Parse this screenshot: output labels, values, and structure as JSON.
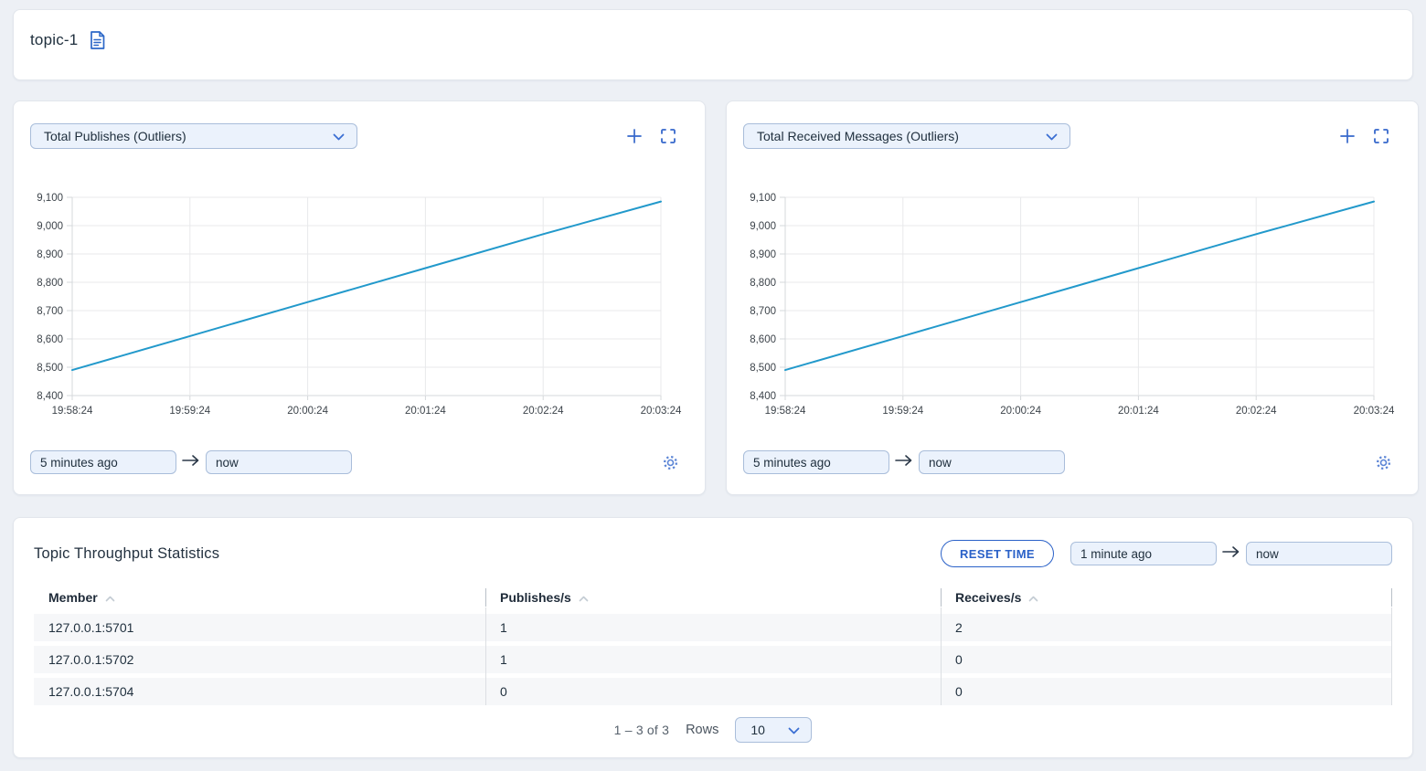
{
  "header": {
    "title": "topic-1"
  },
  "charts": [
    {
      "selector_label": "Total Publishes (Outliers)",
      "from_value": "5 minutes ago",
      "to_value": "now"
    },
    {
      "selector_label": "Total Received Messages (Outliers)",
      "from_value": "5 minutes ago",
      "to_value": "now"
    }
  ],
  "chart_data": [
    {
      "type": "line",
      "title": "Total Publishes (Outliers)",
      "x": [
        "19:58:24",
        "19:59:24",
        "20:00:24",
        "20:01:24",
        "20:02:24",
        "20:03:24"
      ],
      "series": [
        {
          "name": "Total Publishes",
          "values": [
            8490,
            8610,
            8730,
            8850,
            8970,
            9085
          ]
        }
      ],
      "ylim": [
        8400,
        9100
      ],
      "yticks": [
        8400,
        8500,
        8600,
        8700,
        8800,
        8900,
        9000,
        9100
      ],
      "ytick_labels": [
        "8,400",
        "8,500",
        "8,600",
        "8,700",
        "8,800",
        "8,900",
        "9,000",
        "9,100"
      ],
      "grid": true,
      "legend": "none",
      "line_color": "#2299cb"
    },
    {
      "type": "line",
      "title": "Total Received Messages (Outliers)",
      "x": [
        "19:58:24",
        "19:59:24",
        "20:00:24",
        "20:01:24",
        "20:02:24",
        "20:03:24"
      ],
      "series": [
        {
          "name": "Total Received Messages",
          "values": [
            8490,
            8610,
            8730,
            8850,
            8970,
            9085
          ]
        }
      ],
      "ylim": [
        8400,
        9100
      ],
      "yticks": [
        8400,
        8500,
        8600,
        8700,
        8800,
        8900,
        9000,
        9100
      ],
      "ytick_labels": [
        "8,400",
        "8,500",
        "8,600",
        "8,700",
        "8,800",
        "8,900",
        "9,000",
        "9,100"
      ],
      "grid": true,
      "legend": "none",
      "line_color": "#2299cb"
    }
  ],
  "stats": {
    "title": "Topic Throughput Statistics",
    "reset_button_label": "RESET TIME",
    "from_value": "1 minute ago",
    "to_value": "now",
    "columns": [
      "Member",
      "Publishes/s",
      "Receives/s"
    ],
    "rows": [
      {
        "member": "127.0.0.1:5701",
        "publishes_per_s": "1",
        "receives_per_s": "2"
      },
      {
        "member": "127.0.0.1:5702",
        "publishes_per_s": "1",
        "receives_per_s": "0"
      },
      {
        "member": "127.0.0.1:5704",
        "publishes_per_s": "0",
        "receives_per_s": "0"
      }
    ],
    "pagination": {
      "range_text": "1 – 3 of 3",
      "rows_label": "Rows",
      "rows_per_page": "10"
    }
  },
  "colors": {
    "accent_blue": "#3668cb",
    "line_blue": "#2299cb",
    "input_bg": "#ebf2fc",
    "input_border": "#a9bdda",
    "row_bg": "#f6f7f9",
    "grid": "#e8e9eb"
  }
}
